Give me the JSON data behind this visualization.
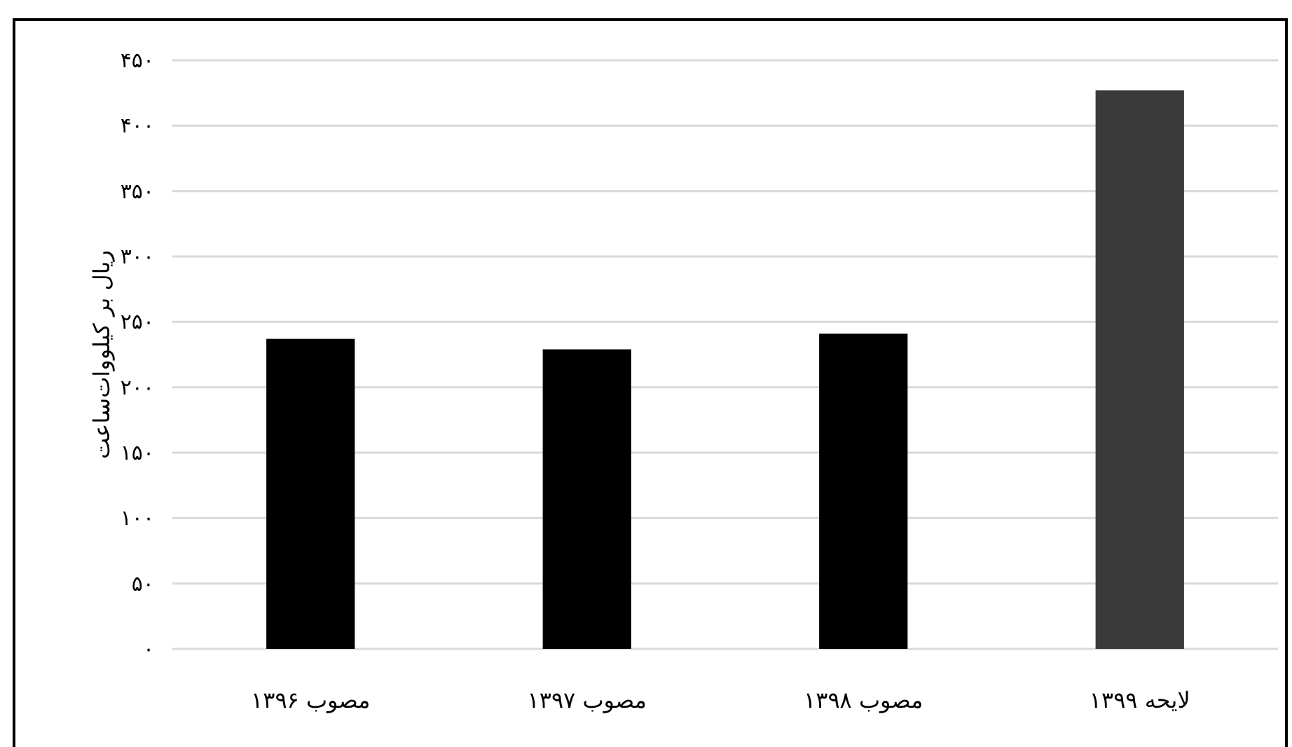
{
  "chart_data": {
    "type": "bar",
    "ylabel": "ریال بر کیلووات‌ساعت",
    "categories": [
      "مصوب ۱۳۹۶",
      "مصوب ۱۳۹۷",
      "مصوب ۱۳۹۸",
      "لایحه ۱۳۹۹"
    ],
    "values": [
      237,
      229,
      241,
      427
    ],
    "colors": [
      "#000000",
      "#000000",
      "#000000",
      "#3a3a3a"
    ],
    "ylim": [
      0,
      450
    ],
    "yticks": [
      {
        "value": 0,
        "label": "۰"
      },
      {
        "value": 50,
        "label": "۵۰"
      },
      {
        "value": 100,
        "label": "۱۰۰"
      },
      {
        "value": 150,
        "label": "۱۵۰"
      },
      {
        "value": 200,
        "label": "۲۰۰"
      },
      {
        "value": 250,
        "label": "۲۵۰"
      },
      {
        "value": 300,
        "label": "۳۰۰"
      },
      {
        "value": 350,
        "label": "۳۵۰"
      },
      {
        "value": 400,
        "label": "۴۰۰"
      },
      {
        "value": 450,
        "label": "۴۵۰"
      }
    ],
    "grid": "y"
  }
}
